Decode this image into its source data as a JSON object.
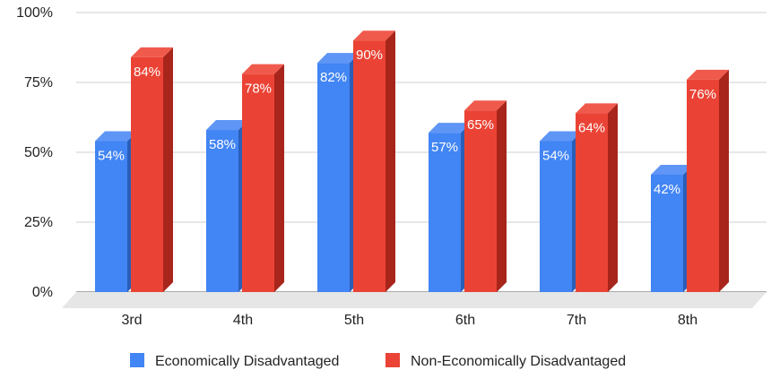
{
  "chart_data": {
    "type": "bar",
    "style": "3d-grouped",
    "categories": [
      "3rd",
      "4th",
      "5th",
      "6th",
      "7th",
      "8th"
    ],
    "series": [
      {
        "name": "Economically Disadvantaged",
        "values": [
          54,
          58,
          82,
          57,
          54,
          42
        ],
        "labels": [
          "54%",
          "58%",
          "82%",
          "57%",
          "54%",
          "42%"
        ],
        "color": "#4285f4"
      },
      {
        "name": "Non-Economically Disadvantaged",
        "values": [
          84,
          78,
          90,
          65,
          64,
          76
        ],
        "labels": [
          "84%",
          "78%",
          "90%",
          "65%",
          "64%",
          "76%"
        ],
        "color": "#ea4335"
      }
    ],
    "ylim": [
      0,
      100
    ],
    "yticks": [
      0,
      25,
      50,
      75,
      100
    ],
    "ytick_labels": [
      "0%",
      "25%",
      "50%",
      "75%",
      "100%"
    ],
    "title": "",
    "xlabel": "",
    "ylabel": "",
    "grid": true,
    "legend_position": "bottom"
  }
}
